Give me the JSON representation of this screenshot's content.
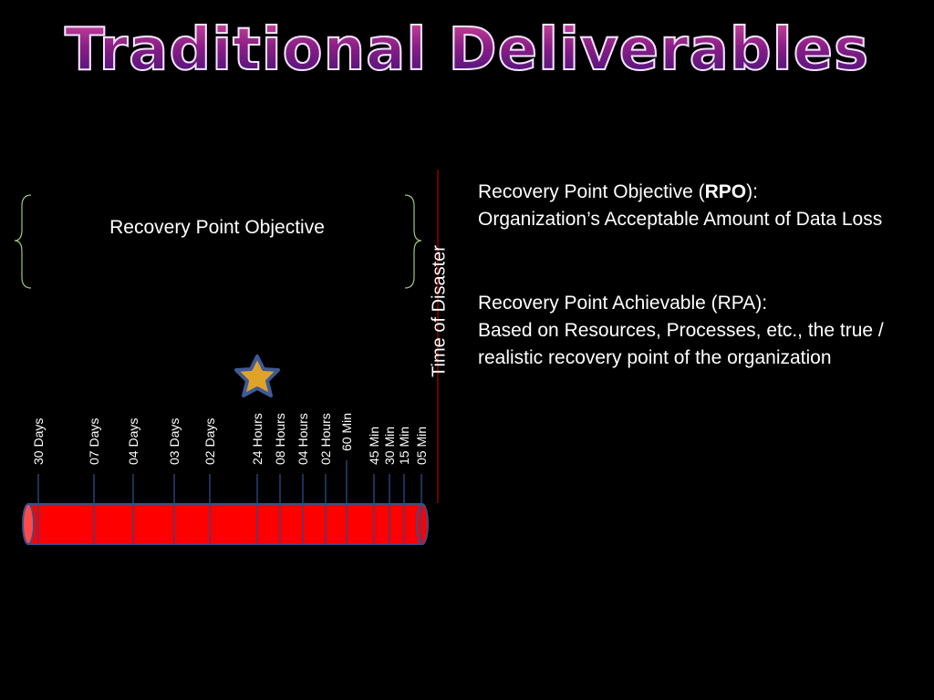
{
  "slide": {
    "title": "Traditional Deliverables",
    "rpo_bracket_label": "Recovery Point Objective",
    "disaster_label": "Time of Disaster",
    "side_text": {
      "rpo_line1_prefix": "Recovery Point Objective (",
      "rpo_abbrev": "RPO",
      "rpo_line1_suffix": "):",
      "rpo_line2": "Organization’s Acceptable Amount of Data Loss",
      "rpa_line1": "Recovery Point Achievable (RPA):",
      "rpa_line2": "Based on Resources, Processes, etc., the true / realistic  recovery point of the organization"
    }
  },
  "timeline": {
    "ticks": [
      "30 Days",
      "07 Days",
      "04 Days",
      "03 Days",
      "02 Days",
      "24 Hours",
      "08 Hours",
      "04 Hours",
      "02 Hours",
      "60 Min",
      "45 Min",
      "30 Min",
      "15 Min",
      "05 Min"
    ],
    "star_marker_tick": "24 Hours"
  },
  "colors": {
    "bar_fill": "#ff0000",
    "bar_outline": "#3a4f86",
    "disaster_line": "#b00000",
    "bracket": "#9ec97a",
    "star_fill": "#e0a32a",
    "star_outline": "#3f5a97",
    "title_gradient_top": "#d34a9a",
    "title_gradient_bottom": "#3c1178"
  }
}
